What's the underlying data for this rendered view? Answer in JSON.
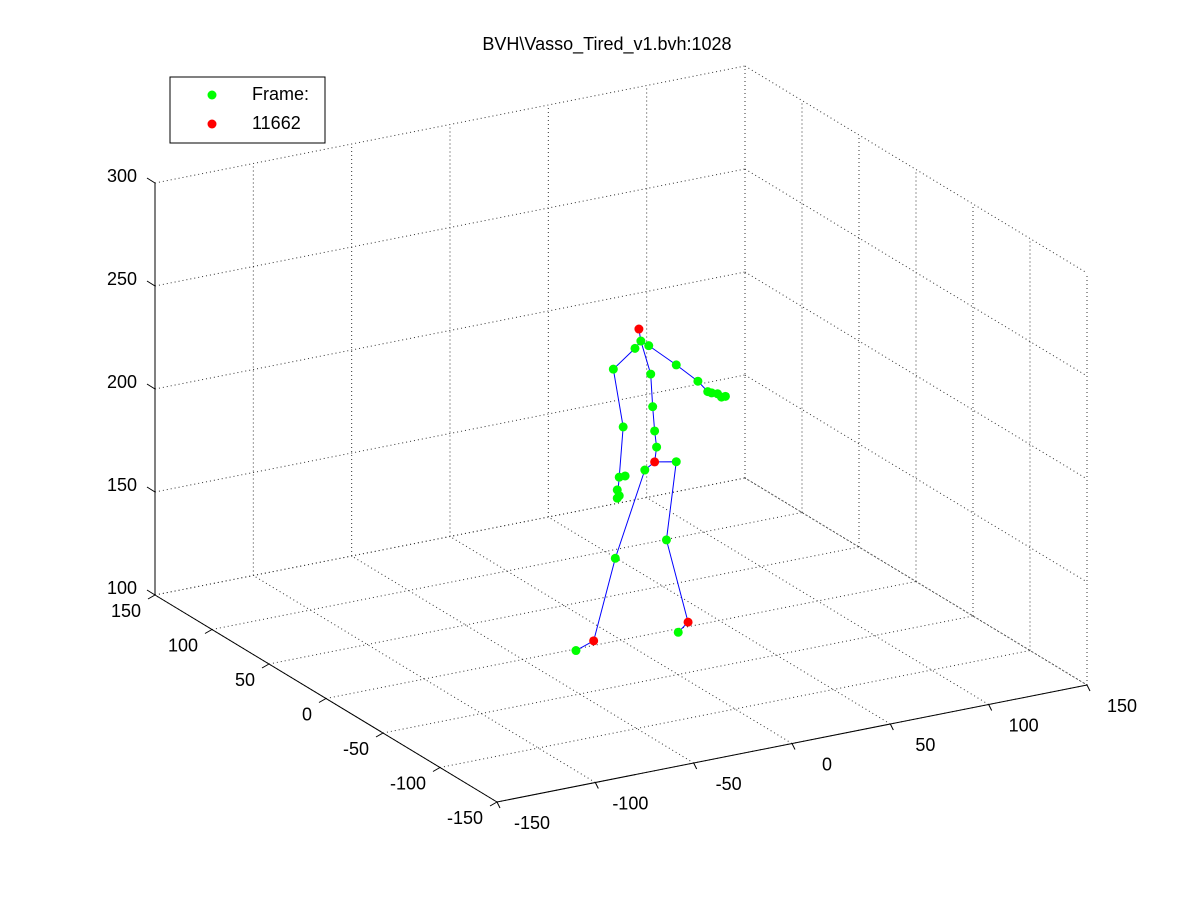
{
  "chart_data": {
    "type": "scatter3d",
    "title": "BVH\\Vasso_Tired_v1.bvh:1028",
    "xlim": [
      -150,
      150
    ],
    "ylim": [
      -150,
      150
    ],
    "zlim": [
      100,
      300
    ],
    "xticks": [
      -150,
      -100,
      -50,
      0,
      50,
      100,
      150
    ],
    "yticks": [
      -150,
      -100,
      -50,
      0,
      50,
      100,
      150
    ],
    "zticks": [
      100,
      150,
      200,
      250,
      300
    ],
    "grid": true,
    "legend": "northwest",
    "series": [
      {
        "name": "Frame:",
        "color": "#00ff00",
        "x": [
          13,
          10,
          17,
          -1,
          18,
          31,
          42,
          47,
          49,
          52,
          54,
          56,
          4,
          19,
          20,
          21,
          15,
          31,
          2,
          5,
          1,
          2,
          1,
          0,
          26,
          -20,
          32
        ],
        "y": [
          5,
          5,
          5,
          5,
          5,
          5,
          5,
          5,
          5,
          5,
          5,
          5,
          5,
          5,
          5,
          5,
          5,
          5,
          5,
          5,
          5,
          5,
          5,
          5,
          5,
          5,
          5
        ],
        "z": [
          241,
          238,
          238,
          230,
          224,
          226,
          216,
          210,
          209,
          208,
          206,
          206,
          201,
          208,
          196,
          188,
          178,
          179,
          177,
          177,
          171,
          168,
          167,
          138,
          142,
          97,
          96
        ]
      },
      {
        "name": "11662",
        "color": "#ff0000",
        "x": [
          12,
          20,
          -11,
          37
        ],
        "y": [
          5,
          5,
          5,
          5
        ],
        "z": [
          247,
          181,
          100,
          100
        ]
      }
    ],
    "lines": {
      "color": "#0000ff",
      "x": [
        -20,
        -11,
        0,
        15,
        20,
        31,
        26,
        37,
        32,
        null,
        20,
        21,
        20,
        19,
        18,
        13,
        12,
        null,
        1,
        2,
        4,
        -1,
        10,
        13,
        17,
        31,
        42,
        47,
        56
      ],
      "y": [
        5,
        5,
        5,
        5,
        5,
        5,
        5,
        5,
        5,
        null,
        5,
        5,
        5,
        5,
        5,
        5,
        5,
        null,
        5,
        5,
        5,
        5,
        5,
        5,
        5,
        5,
        5,
        5,
        5
      ],
      "z": [
        97,
        100,
        138,
        178,
        181,
        179,
        142,
        100,
        96,
        null,
        181,
        188,
        196,
        208,
        224,
        241,
        247,
        null,
        167,
        177,
        201,
        230,
        238,
        241,
        238,
        226,
        216,
        210,
        206
      ]
    }
  }
}
